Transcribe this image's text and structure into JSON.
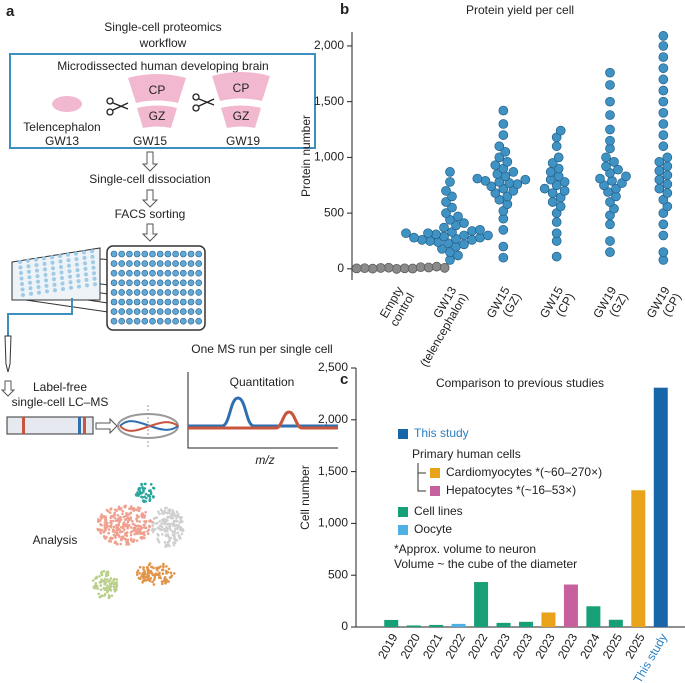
{
  "diagram": {
    "panel_label": "a",
    "title": [
      "Single-cell proteomics",
      "workflow"
    ],
    "box_title": "Microdissected human developing brain",
    "regions": [
      "CP",
      "GZ",
      "CP",
      "GZ"
    ],
    "samples": [
      "Telencephalon",
      "GW13",
      "GW15",
      "GW19"
    ],
    "steps": [
      "Single-cell dissociation",
      "FACS sorting",
      "One MS run per single cell"
    ],
    "lcms": [
      "Label-free",
      "single-cell LC–MS"
    ],
    "quant_title": "Quantitation",
    "quant_axis": "m/z",
    "analysis": "Analysis"
  },
  "chart_data": [
    {
      "type": "swarm",
      "panel_label": "b",
      "title": "Protein yield per cell",
      "y_label": "Protein number",
      "categories": [
        [
          "Empty",
          "control"
        ],
        [
          "GW13",
          "(telencephalon)"
        ],
        [
          "GW15",
          "(GZ)"
        ],
        [
          "GW15",
          "(CP)"
        ],
        [
          "GW19",
          "(GZ)"
        ],
        [
          "GW19",
          "(CP)"
        ]
      ],
      "color": "#3f93c4",
      "empty_color": "#8a8a8a",
      "values": [
        [
          0,
          5,
          10,
          3,
          8,
          15,
          2,
          12,
          6,
          20,
          4,
          9
        ],
        [
          80,
          120,
          150,
          180,
          200,
          220,
          230,
          240,
          250,
          260,
          260,
          270,
          280,
          280,
          290,
          300,
          300,
          310,
          320,
          320,
          330,
          340,
          350,
          370,
          390,
          410,
          440,
          470,
          500,
          550,
          600,
          650,
          700,
          780,
          870
        ],
        [
          100,
          200,
          350,
          450,
          520,
          580,
          620,
          650,
          680,
          700,
          720,
          740,
          760,
          770,
          780,
          790,
          800,
          810,
          830,
          850,
          870,
          900,
          930,
          960,
          1000,
          1050,
          1100,
          1200,
          1300,
          1420
        ],
        [
          110,
          250,
          320,
          420,
          500,
          560,
          600,
          640,
          680,
          700,
          720,
          750,
          780,
          800,
          830,
          870,
          900,
          950,
          1000,
          1100,
          1180,
          1240
        ],
        [
          150,
          250,
          400,
          480,
          540,
          600,
          650,
          690,
          720,
          750,
          770,
          790,
          810,
          830,
          860,
          890,
          920,
          960,
          1000,
          1080,
          1150,
          1250,
          1380,
          1500,
          1650,
          1760
        ],
        [
          80,
          150,
          300,
          400,
          500,
          560,
          620,
          680,
          720,
          760,
          800,
          840,
          880,
          920,
          960,
          1000,
          1100,
          1200,
          1300,
          1400,
          1500,
          1600,
          1700,
          1800,
          1900,
          2000,
          2090
        ]
      ],
      "ylim": [
        -100,
        2125
      ],
      "yticks": [
        0,
        500,
        {
          "value": 1000,
          "label": "1,000"
        },
        {
          "value": 1500,
          "label": "1,500"
        },
        {
          "value": 2000,
          "label": "2,000"
        }
      ]
    },
    {
      "type": "bar",
      "panel_label": "c",
      "title": "Comparison to previous studies",
      "y_label": "Cell number",
      "categories": [
        "2019",
        "2020",
        "2021",
        "2022",
        "2022",
        "2023",
        "2023",
        "2023",
        "2023",
        "2024",
        "2025",
        "2025",
        "This study"
      ],
      "values": [
        68,
        15,
        20,
        30,
        434,
        40,
        50,
        140,
        410,
        200,
        70,
        1320,
        2310
      ],
      "colors": [
        "#17a078",
        "#17a078",
        "#17a078",
        "#4fb1e3",
        "#17a078",
        "#17a078",
        "#17a078",
        "#e8a31a",
        "#c6619d",
        "#17a078",
        "#17a078",
        "#e8a31a",
        "#1766a8"
      ],
      "highlight_color": "#2a7fc0",
      "legend": [
        {
          "name": "This study",
          "color": "#1766a8"
        },
        {
          "name": "Cardiomyocytes *(~60–270×)",
          "color": "#e8a31a"
        },
        {
          "name": "Hepatocytes *(~16–53×)",
          "color": "#c6619d"
        },
        {
          "name": "Cell lines",
          "color": "#17a078"
        },
        {
          "name": "Oocyte",
          "color": "#4fb1e3"
        }
      ],
      "legend_group": "Primary human cells",
      "notes": [
        "*Approx. volume to neuron",
        "Volume ~ the cube of the diameter"
      ],
      "ylim": [
        0,
        2500
      ],
      "yticks": [
        0,
        500,
        {
          "value": 1000,
          "label": "1,000"
        },
        {
          "value": 1500,
          "label": "1,500"
        },
        {
          "value": 2000,
          "label": "2,000"
        },
        {
          "value": 2500,
          "label": "2,500"
        }
      ]
    }
  ]
}
